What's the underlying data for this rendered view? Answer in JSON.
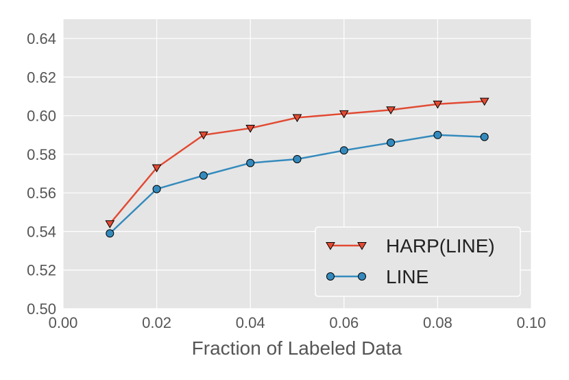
{
  "chart_data": {
    "type": "line",
    "xlabel": "Fraction of Labeled Data",
    "ylabel": "",
    "xlim": [
      0.0,
      0.1
    ],
    "ylim": [
      0.5,
      0.65
    ],
    "x_ticks": [
      "0.00",
      "0.02",
      "0.04",
      "0.06",
      "0.08",
      "0.10"
    ],
    "y_ticks": [
      "0.50",
      "0.52",
      "0.54",
      "0.56",
      "0.58",
      "0.60",
      "0.62",
      "0.64"
    ],
    "x_tick_values": [
      0.0,
      0.02,
      0.04,
      0.06,
      0.08,
      0.1
    ],
    "y_tick_values": [
      0.5,
      0.52,
      0.54,
      0.56,
      0.58,
      0.6,
      0.62,
      0.64
    ],
    "x": [
      0.01,
      0.02,
      0.03,
      0.04,
      0.05,
      0.06,
      0.07,
      0.08,
      0.09
    ],
    "grid": true,
    "legend_position": "lower-right",
    "background": "#e5e5e5",
    "series": [
      {
        "name": "HARP(LINE)",
        "color": "#e24a33",
        "marker": "triangle-down",
        "values": [
          0.544,
          0.573,
          0.59,
          0.5935,
          0.599,
          0.601,
          0.603,
          0.606,
          0.6075
        ]
      },
      {
        "name": "LINE",
        "color": "#348abd",
        "marker": "circle",
        "values": [
          0.539,
          0.562,
          0.569,
          0.5755,
          0.5775,
          0.582,
          0.586,
          0.59,
          0.589
        ]
      }
    ]
  }
}
